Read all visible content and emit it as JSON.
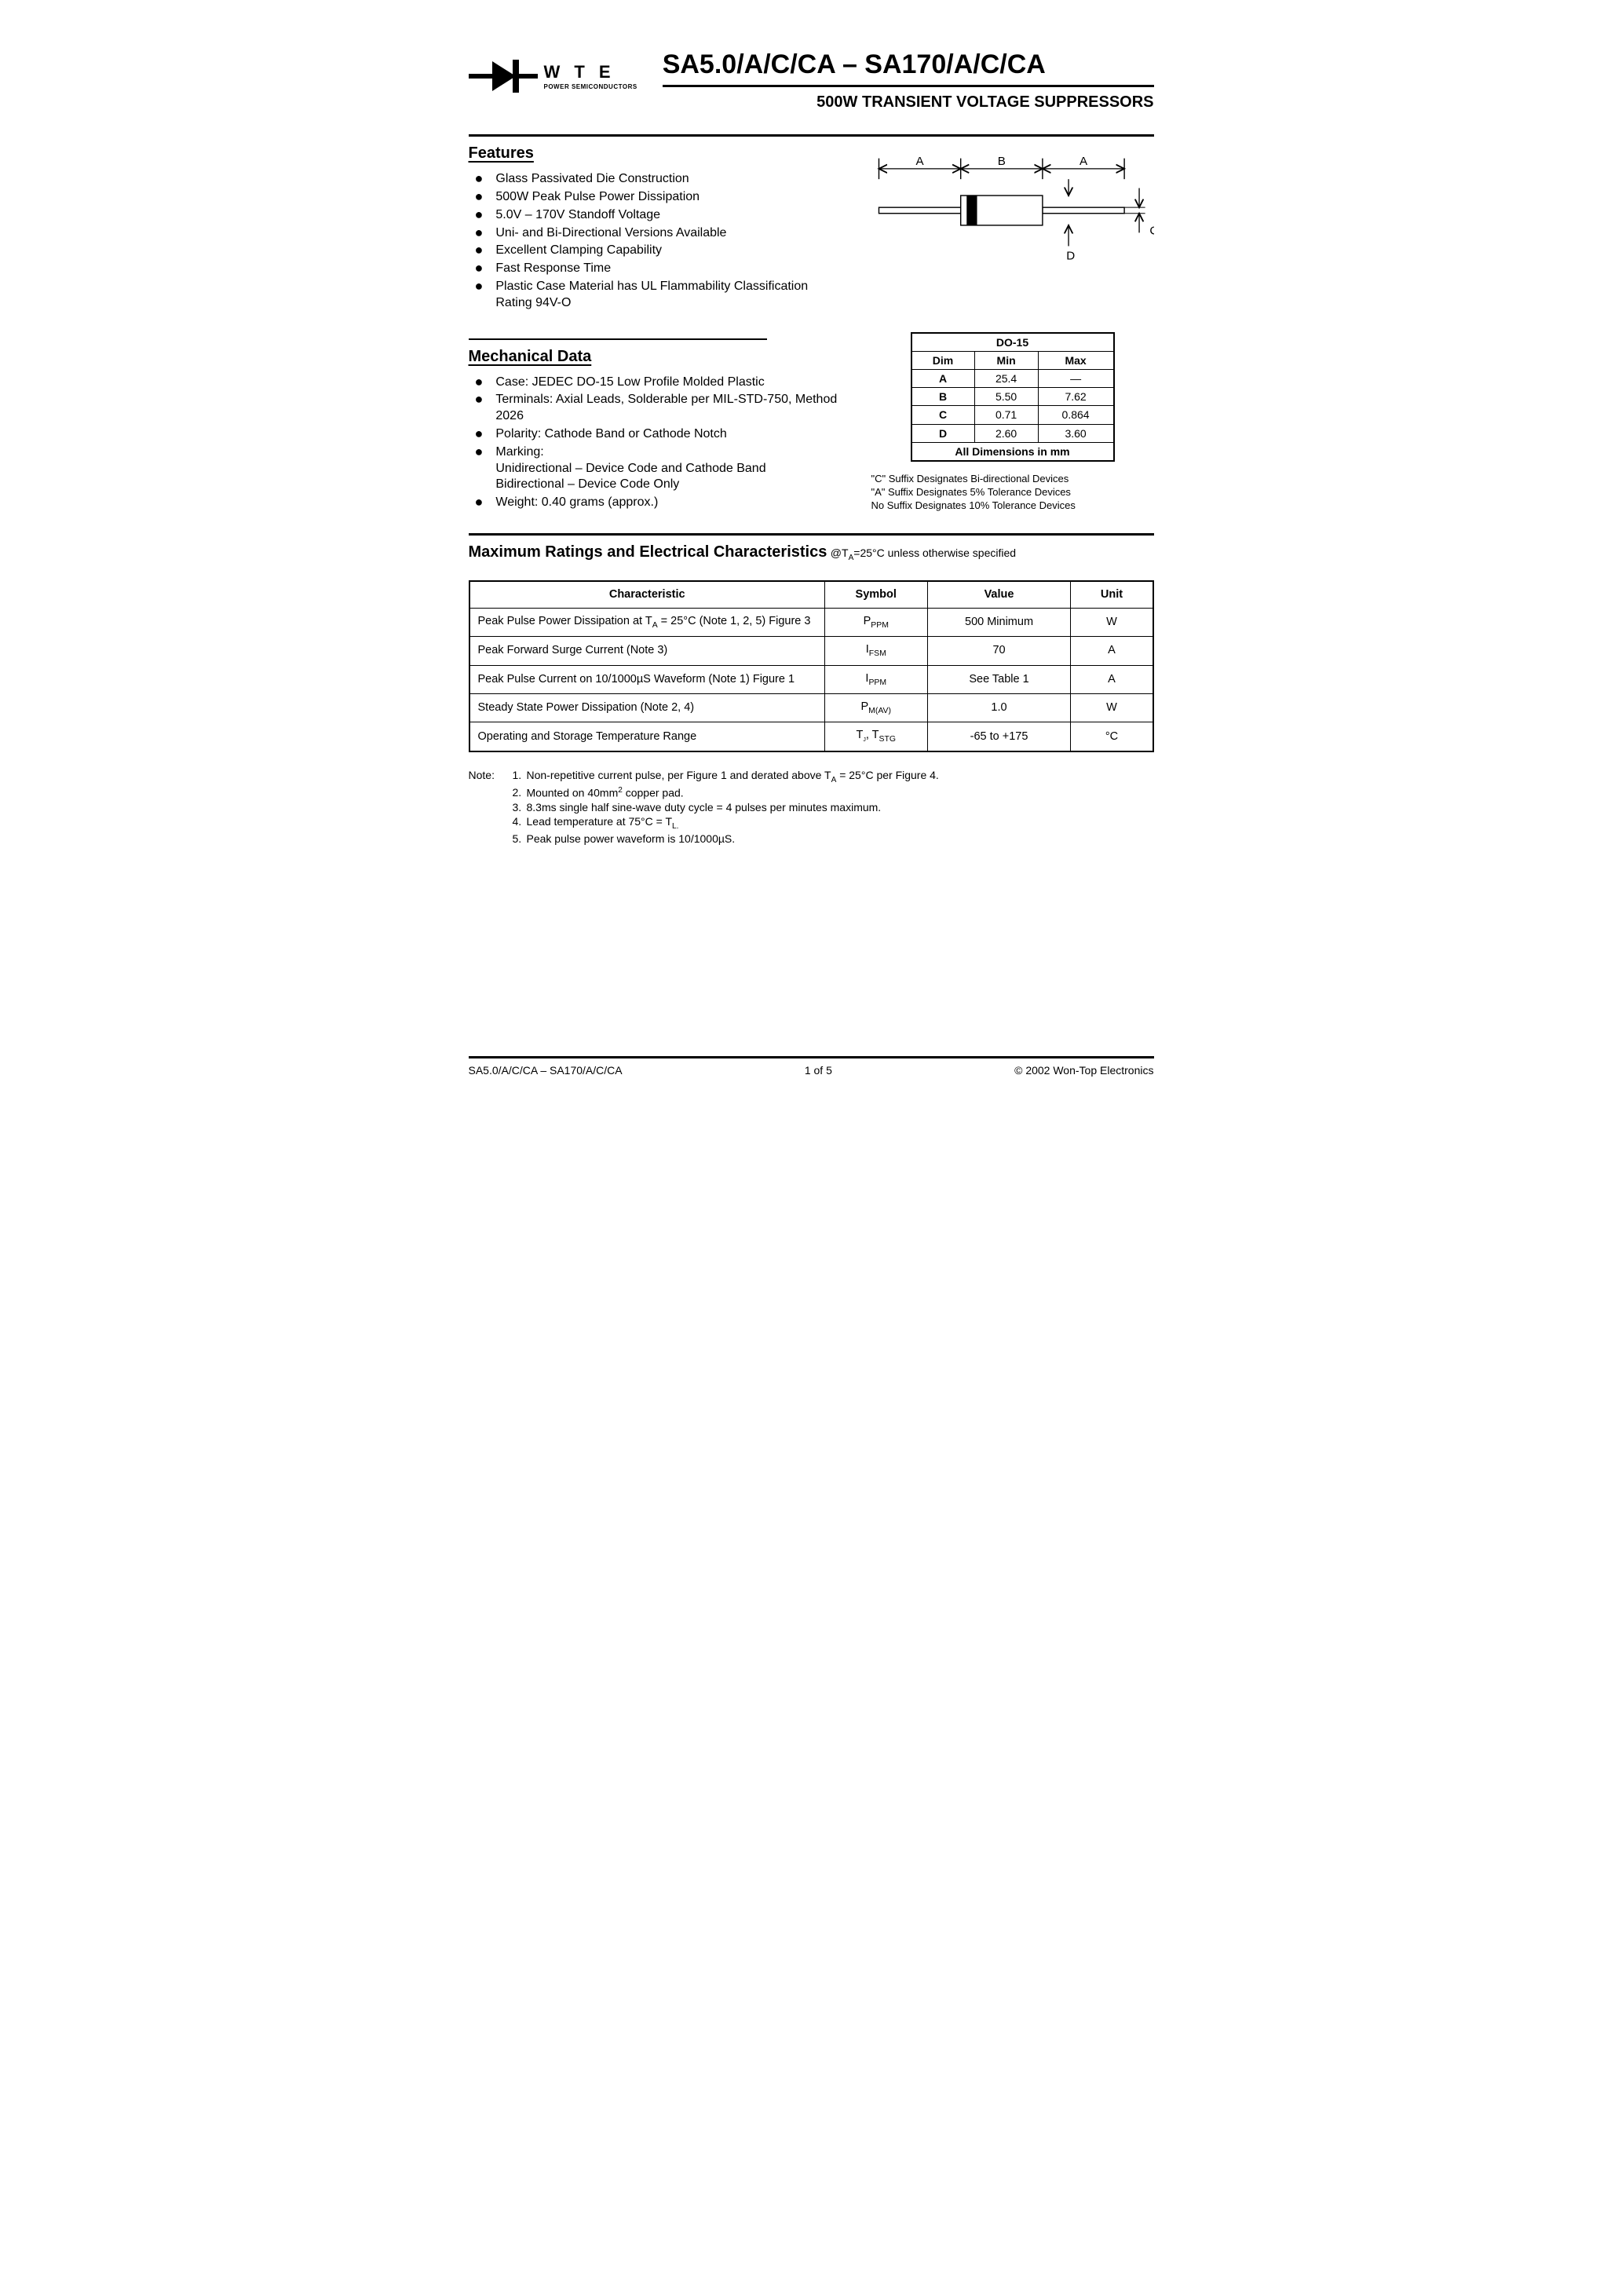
{
  "logo": {
    "wte": "W T E",
    "sub": "POWER SEMICONDUCTORS"
  },
  "title": "SA5.0/A/C/CA – SA170/A/C/CA",
  "subtitle": "500W TRANSIENT VOLTAGE SUPPRESSORS",
  "features": {
    "heading": "Features",
    "items": [
      "Glass Passivated Die Construction",
      "500W Peak Pulse Power Dissipation",
      "5.0V – 170V Standoff Voltage",
      "Uni- and Bi-Directional Versions Available",
      "Excellent Clamping Capability",
      "Fast Response Time",
      "Plastic Case Material has UL Flammability Classification Rating 94V-O"
    ]
  },
  "diagram": {
    "labels": {
      "A": "A",
      "B": "B",
      "C": "C",
      "D": "D"
    },
    "stroke": "#000000",
    "fill_band": "#000000",
    "bg": "#ffffff"
  },
  "mechanical": {
    "heading": "Mechanical Data",
    "items": [
      "Case: JEDEC DO-15 Low Profile Molded Plastic",
      "Terminals: Axial Leads, Solderable per MIL-STD-750, Method 2026",
      "Polarity: Cathode Band or Cathode Notch",
      "Marking:\nUnidirectional – Device Code and Cathode Band\nBidirectional – Device Code Only",
      "Weight: 0.40 grams (approx.)"
    ]
  },
  "dim_table": {
    "title": "DO-15",
    "columns": [
      "Dim",
      "Min",
      "Max"
    ],
    "rows": [
      [
        "A",
        "25.4",
        "—"
      ],
      [
        "B",
        "5.50",
        "7.62"
      ],
      [
        "C",
        "0.71",
        "0.864"
      ],
      [
        "D",
        "2.60",
        "3.60"
      ]
    ],
    "footer": "All Dimensions in mm"
  },
  "suffix_notes": [
    "\"C\" Suffix Designates Bi-directional Devices",
    "\"A\" Suffix Designates 5% Tolerance Devices",
    "No Suffix Designates 10% Tolerance Devices"
  ],
  "max_section": {
    "heading": "Maximum Ratings and Electrical Characteristics",
    "condition_prefix": " @T",
    "condition_sub": "A",
    "condition_suffix": "=25°C unless otherwise specified",
    "columns": [
      "Characteristic",
      "Symbol",
      "Value",
      "Unit"
    ],
    "rows": [
      {
        "char_pre": "Peak Pulse Power Dissipation at T",
        "char_sub": "A",
        "char_post": " = 25°C (Note 1, 2, 5) Figure 3",
        "sym": "P",
        "sym_sub": "PPM",
        "val": "500 Minimum",
        "unit": "W"
      },
      {
        "char_pre": "Peak Forward Surge Current (Note 3)",
        "char_sub": "",
        "char_post": "",
        "sym": "I",
        "sym_sub": "FSM",
        "val": "70",
        "unit": "A"
      },
      {
        "char_pre": "Peak Pulse Current on 10/1000µS Waveform (Note 1) Figure 1",
        "char_sub": "",
        "char_post": "",
        "sym": "I",
        "sym_sub": "PPM",
        "val": "See Table 1",
        "unit": "A"
      },
      {
        "char_pre": "Steady State Power Dissipation (Note 2, 4)",
        "char_sub": "",
        "char_post": "",
        "sym": "P",
        "sym_sub": "M(AV)",
        "val": "1.0",
        "unit": "W"
      },
      {
        "char_pre": "Operating and Storage Temperature Range",
        "char_sub": "",
        "char_post": "",
        "sym": "T",
        "sym_sub": "j",
        "sym2": ", T",
        "sym2_sub": "STG",
        "val": "-65 to +175",
        "unit": "°C"
      }
    ]
  },
  "notes": {
    "label": "Note:",
    "items": [
      {
        "n": "1.",
        "pre": "Non-repetitive current pulse, per Figure 1 and derated above T",
        "sub": "A",
        "post": " = 25°C per Figure 4."
      },
      {
        "n": "2.",
        "pre": "Mounted on 40mm",
        "sup": "2",
        "post": " copper pad."
      },
      {
        "n": "3.",
        "pre": "8.3ms single half sine-wave duty cycle = 4 pulses per minutes maximum.",
        "sub": "",
        "post": ""
      },
      {
        "n": "4.",
        "pre": "Lead temperature at 75°C = T",
        "sub": "L.",
        "post": ""
      },
      {
        "n": "5.",
        "pre": "Peak pulse power waveform is 10/1000µS.",
        "sub": "",
        "post": ""
      }
    ]
  },
  "footer": {
    "left": "SA5.0/A/C/CA – SA170/A/C/CA",
    "center": "1  of  5",
    "right": "© 2002 Won-Top Electronics"
  }
}
